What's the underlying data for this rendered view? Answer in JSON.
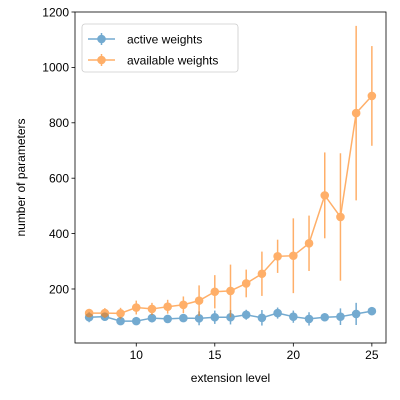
{
  "chart_data": {
    "type": "line",
    "xlabel": "extension level",
    "ylabel": "number of parameters",
    "xlim": [
      6.1,
      25.9
    ],
    "ylim": [
      5,
      1200
    ],
    "xticks": [
      10,
      15,
      20,
      25
    ],
    "yticks": [
      200,
      400,
      600,
      800,
      1000,
      1200
    ],
    "grid": false,
    "legend_position": "top-left",
    "x": [
      7,
      8,
      9,
      10,
      11,
      12,
      13,
      14,
      15,
      16,
      17,
      18,
      19,
      20,
      21,
      22,
      23,
      24,
      25
    ],
    "series": [
      {
        "name": "active weights",
        "color": "#1f77b4",
        "values": [
          98,
          100,
          84,
          84,
          95,
          92,
          95,
          94,
          98,
          98,
          107,
          96,
          113,
          100,
          92,
          98,
          100,
          110,
          120
        ],
        "errors": [
          18,
          15,
          14,
          13,
          16,
          14,
          13,
          25,
          24,
          26,
          18,
          28,
          20,
          22,
          24,
          14,
          30,
          40,
          12
        ]
      },
      {
        "name": "available weights",
        "color": "#ff7f0e",
        "values": [
          113,
          113,
          112,
          133,
          128,
          136,
          143,
          158,
          190,
          193,
          220,
          255,
          318,
          320,
          365,
          538,
          460,
          835,
          897
        ],
        "errors": [
          15,
          18,
          20,
          25,
          22,
          25,
          30,
          55,
          60,
          95,
          50,
          80,
          60,
          135,
          100,
          155,
          230,
          315,
          180
        ]
      }
    ]
  }
}
